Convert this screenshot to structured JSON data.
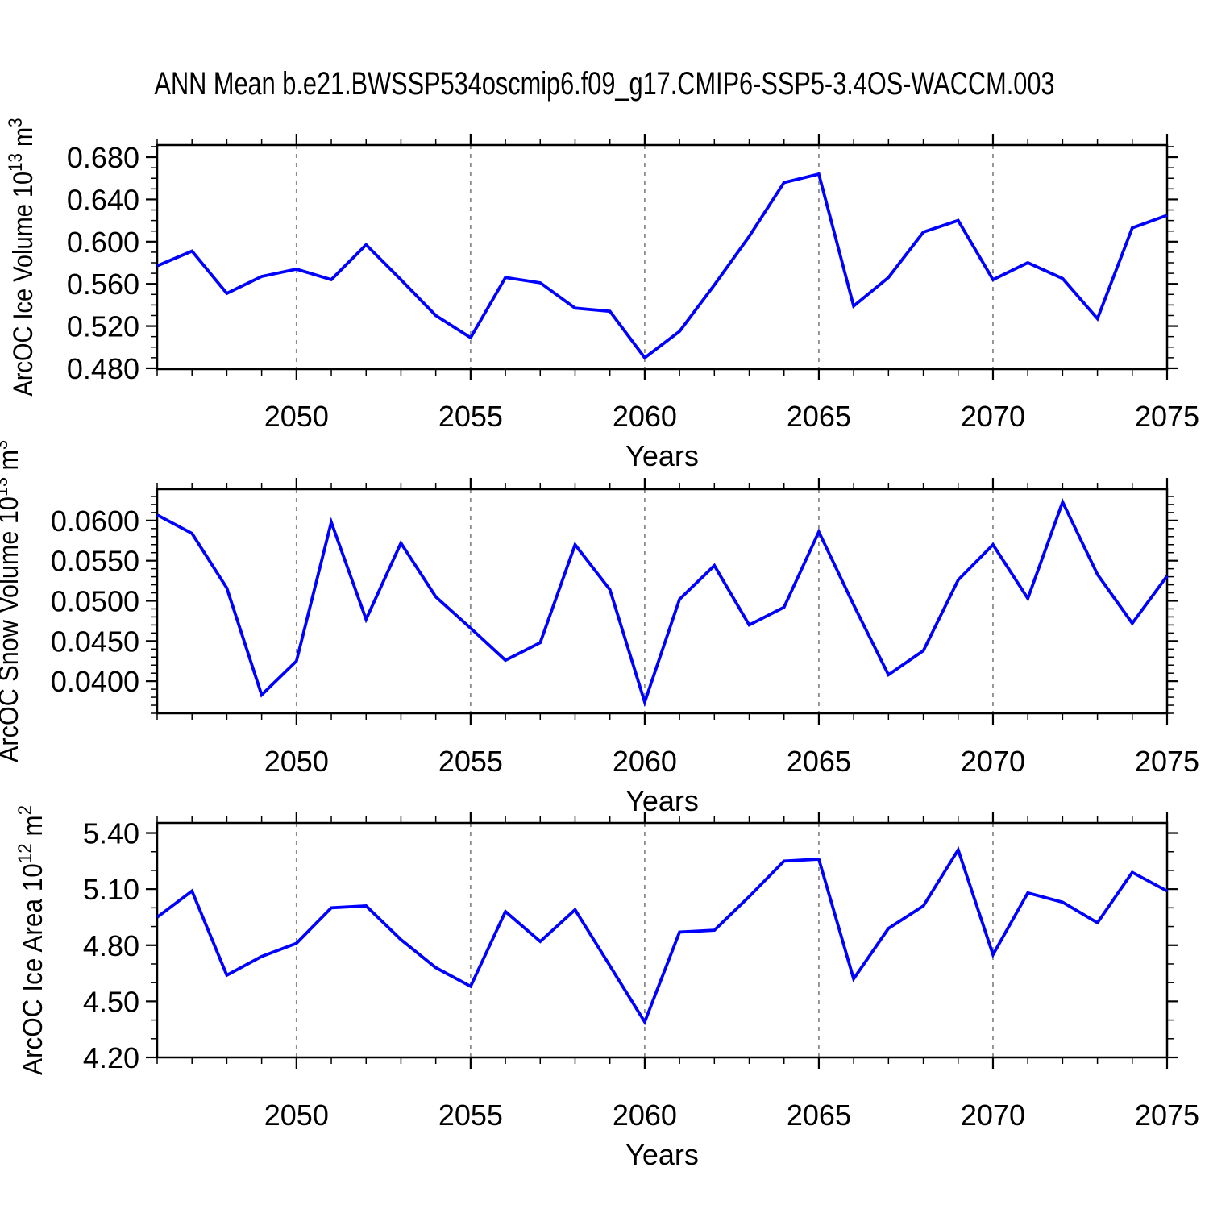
{
  "title": "ANN Mean b.e21.BWSSP534oscmip6.f09_g17.CMIP6-SSP5-3.4OS-WACCM.003",
  "colors": {
    "line": "#0000ff",
    "grid": "#8c8c8c",
    "axis": "#000000",
    "background": "#ffffff"
  },
  "chart_data": [
    {
      "type": "line",
      "ylabel": "ArcOC Ice Volume 10^13 m^3",
      "ylabel_parts": [
        {
          "t": "ArcOC Ice Volume 10"
        },
        {
          "t": "13",
          "sup": true
        },
        {
          "t": " m"
        },
        {
          "t": "3",
          "sup": true
        }
      ],
      "xlabel": "Years",
      "x": [
        2046,
        2047,
        2048,
        2049,
        2050,
        2051,
        2052,
        2053,
        2054,
        2055,
        2056,
        2057,
        2058,
        2059,
        2060,
        2061,
        2062,
        2063,
        2064,
        2065,
        2066,
        2067,
        2068,
        2069,
        2070,
        2071,
        2072,
        2073,
        2074,
        2075
      ],
      "values": [
        0.577,
        0.591,
        0.551,
        0.567,
        0.574,
        0.564,
        0.597,
        0.564,
        0.53,
        0.509,
        0.566,
        0.561,
        0.537,
        0.534,
        0.49,
        0.515,
        0.559,
        0.605,
        0.656,
        0.664,
        0.539,
        0.566,
        0.609,
        0.62,
        0.564,
        0.58,
        0.565,
        0.527,
        0.613,
        0.625
      ],
      "ylim": [
        0.4792,
        0.6915
      ],
      "yticks": [
        0.48,
        0.52,
        0.56,
        0.6,
        0.64,
        0.68
      ],
      "ytick_labels": [
        "0.480",
        "0.520",
        "0.560",
        "0.600",
        "0.640",
        "0.680"
      ],
      "y_minor_step": 0.01,
      "xlim": [
        2046,
        2075
      ],
      "xticks": [
        2050,
        2055,
        2060,
        2065,
        2070,
        2075
      ],
      "xtick_labels": [
        "2050",
        "2055",
        "2060",
        "2065",
        "2070",
        "2075"
      ],
      "x_minor_step": 1,
      "grid_x": [
        2050,
        2055,
        2060,
        2065,
        2070
      ],
      "line_color": "#0000ff",
      "legend": "none",
      "grid": "vertical-dashed-only"
    },
    {
      "type": "line",
      "ylabel": "ArcOC Snow Volume 10^13 m^3",
      "ylabel_parts": [
        {
          "t": "ArcOC Snow Volume 10"
        },
        {
          "t": "13",
          "sup": true
        },
        {
          "t": " m"
        },
        {
          "t": "3",
          "sup": true
        }
      ],
      "xlabel": "Years",
      "x": [
        2046,
        2047,
        2048,
        2049,
        2050,
        2051,
        2052,
        2053,
        2054,
        2055,
        2056,
        2057,
        2058,
        2059,
        2060,
        2061,
        2062,
        2063,
        2064,
        2065,
        2066,
        2067,
        2068,
        2069,
        2070,
        2071,
        2072,
        2073,
        2074,
        2075
      ],
      "values": [
        0.0607,
        0.0584,
        0.0516,
        0.0383,
        0.0425,
        0.0598,
        0.0477,
        0.0572,
        0.0505,
        0.0466,
        0.0426,
        0.0448,
        0.057,
        0.0514,
        0.0374,
        0.0502,
        0.0544,
        0.047,
        0.0492,
        0.0586,
        0.0495,
        0.0408,
        0.0438,
        0.0526,
        0.057,
        0.0503,
        0.0623,
        0.0533,
        0.0472,
        0.0531
      ],
      "ylim": [
        0.036,
        0.0639
      ],
      "yticks": [
        0.04,
        0.045,
        0.05,
        0.055,
        0.06
      ],
      "ytick_labels": [
        "0.0400",
        "0.0450",
        "0.0500",
        "0.0550",
        "0.0600"
      ],
      "y_minor_step": 0.001,
      "xlim": [
        2046,
        2075
      ],
      "xticks": [
        2050,
        2055,
        2060,
        2065,
        2070,
        2075
      ],
      "xtick_labels": [
        "2050",
        "2055",
        "2060",
        "2065",
        "2070",
        "2075"
      ],
      "x_minor_step": 1,
      "grid_x": [
        2050,
        2055,
        2060,
        2065,
        2070
      ],
      "line_color": "#0000ff",
      "legend": "none",
      "grid": "vertical-dashed-only"
    },
    {
      "type": "line",
      "ylabel": "ArcOC Ice Area 10^12 m^2",
      "ylabel_parts": [
        {
          "t": "ArcOC Ice Area 10"
        },
        {
          "t": "12",
          "sup": true
        },
        {
          "t": " m"
        },
        {
          "t": "2",
          "sup": true
        }
      ],
      "xlabel": "Years",
      "x": [
        2046,
        2047,
        2048,
        2049,
        2050,
        2051,
        2052,
        2053,
        2054,
        2055,
        2056,
        2057,
        2058,
        2059,
        2060,
        2061,
        2062,
        2063,
        2064,
        2065,
        2066,
        2067,
        2068,
        2069,
        2070,
        2071,
        2072,
        2073,
        2074,
        2075
      ],
      "values": [
        4.95,
        5.09,
        4.64,
        4.74,
        4.81,
        5.0,
        5.01,
        4.83,
        4.68,
        4.58,
        4.98,
        4.82,
        4.99,
        4.69,
        4.39,
        4.87,
        4.88,
        5.06,
        5.25,
        5.26,
        4.62,
        4.89,
        5.01,
        5.31,
        4.75,
        5.08,
        5.03,
        4.92,
        5.19,
        5.09
      ],
      "ylim": [
        4.2,
        5.454
      ],
      "yticks": [
        4.2,
        4.5,
        4.8,
        5.1,
        5.4
      ],
      "ytick_labels": [
        "4.20",
        "4.50",
        "4.80",
        "5.10",
        "5.40"
      ],
      "y_minor_step": 0.1,
      "xlim": [
        2046,
        2075
      ],
      "xticks": [
        2050,
        2055,
        2060,
        2065,
        2070,
        2075
      ],
      "xtick_labels": [
        "2050",
        "2055",
        "2060",
        "2065",
        "2070",
        "2075"
      ],
      "x_minor_step": 1,
      "grid_x": [
        2050,
        2055,
        2060,
        2065,
        2070
      ],
      "line_color": "#0000ff",
      "legend": "none",
      "grid": "vertical-dashed-only"
    }
  ]
}
